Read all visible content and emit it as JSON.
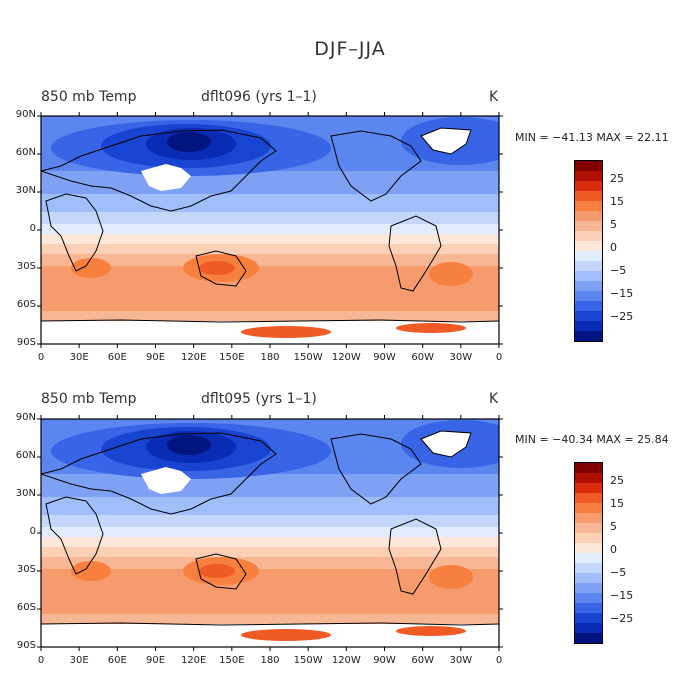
{
  "title": "DJF–JJA",
  "panels": [
    {
      "field_label": "850 mb Temp",
      "case_label": "dflt096 (yrs 1–1)",
      "units": "K",
      "stats": "MIN = −41.13 MAX =  22.11"
    },
    {
      "field_label": "850 mb Temp",
      "case_label": "dflt095 (yrs 1–1)",
      "units": "K",
      "stats": "MIN = −40.34 MAX =  25.84"
    }
  ],
  "map": {
    "projection": "cylindrical equidistant",
    "central_longitude": "180",
    "lat_ticks": [
      "90N",
      "60N",
      "30N",
      "0",
      "30S",
      "60S",
      "90S"
    ],
    "lon_ticks": [
      "0",
      "30E",
      "60E",
      "90E",
      "120E",
      "150E",
      "180",
      "150W",
      "120W",
      "90W",
      "60W",
      "30W",
      "0"
    ],
    "coastlines": true,
    "missing_data_color": "#ffffff"
  },
  "colorbar": {
    "labels": [
      "25",
      "15",
      "5",
      "0",
      "−5",
      "−15",
      "−25"
    ],
    "colors_top_to_bottom": [
      "#800000",
      "#b01000",
      "#d82e0e",
      "#f05a25",
      "#f8803e",
      "#f59b6e",
      "#f7b795",
      "#fbd0b7",
      "#fde7d8",
      "#e0ecff",
      "#c4d7fb",
      "#a0befa",
      "#7ea1f3",
      "#5b86f0",
      "#3864e6",
      "#1844d2",
      "#0a2cb5",
      "#00157f"
    ]
  }
}
